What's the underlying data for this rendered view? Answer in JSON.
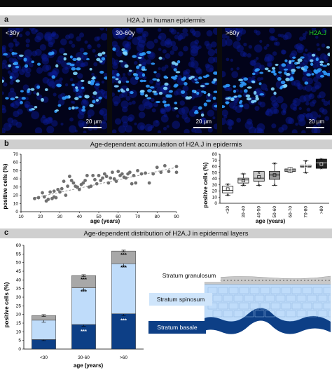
{
  "panel_a": {
    "letter": "a",
    "title": "H2A.J in human epidermis",
    "images": [
      {
        "label": "<30y",
        "scale": "20 µm"
      },
      {
        "label": "30-60y",
        "scale": "20 µm"
      },
      {
        "label": ">60y",
        "scale": "20 µm",
        "marker": "H2A.J"
      }
    ],
    "colors": {
      "nuclei": "#2f9bff",
      "background": "#02031a",
      "marker": "#22d422"
    }
  },
  "panel_b": {
    "letter": "b",
    "title": "Age-dependent accumulation of H2A.J in epidermis",
    "scatter": {
      "xlabel": "age (years)",
      "ylabel": "positive cells (%)",
      "xticks": [
        "10",
        "20",
        "30",
        "40",
        "50",
        "60",
        "70",
        "80",
        "90"
      ],
      "yticks": [
        "0",
        "10",
        "20",
        "30",
        "40",
        "50",
        "60",
        "70"
      ]
    },
    "boxplot": {
      "xlabel": "age (years)",
      "ylabel": "positive cells (%)",
      "yticks": [
        "0",
        "10",
        "20",
        "30",
        "40",
        "50",
        "60",
        "70",
        "80"
      ]
    }
  },
  "panel_c": {
    "letter": "c",
    "title": "Age-dependent distribution of H2A.J in epidermal layers",
    "xlabel": "age (years)",
    "ylabel": "positive cells (%)",
    "yticks": [
      "0",
      "5",
      "10",
      "15",
      "20",
      "25",
      "30",
      "35",
      "40",
      "45",
      "50",
      "55",
      "60"
    ],
    "layers": {
      "granulosum": "Stratum granulosum",
      "spinosum": "Stratum spinosum",
      "basale": "Stratum basale"
    },
    "significance": "***",
    "colors": {
      "basale": "#0d3f86",
      "spinosum": "#bfdcfa",
      "granulosum": "#a8a8a8"
    }
  },
  "chart_data": [
    {
      "type": "scatter",
      "xlabel": "age (years)",
      "ylabel": "positive cells (%)",
      "xlim": [
        10,
        90
      ],
      "ylim": [
        0,
        70
      ],
      "x": [
        17,
        19,
        21,
        22,
        23,
        24,
        25,
        26,
        27,
        27,
        28,
        29,
        30,
        31,
        32,
        33,
        34,
        35,
        36,
        37,
        38,
        39,
        40,
        41,
        42,
        43,
        44,
        45,
        46,
        47,
        48,
        49,
        50,
        51,
        52,
        53,
        54,
        55,
        56,
        57,
        58,
        59,
        60,
        61,
        62,
        63,
        64,
        65,
        66,
        67,
        68,
        69,
        70,
        72,
        74,
        76,
        78,
        80,
        82,
        84,
        86,
        90,
        90
      ],
      "y": [
        16,
        17,
        23,
        18,
        13,
        15,
        24,
        16,
        18,
        25,
        17,
        27,
        24,
        28,
        37,
        20,
        31,
        43,
        38,
        35,
        31,
        30,
        27,
        33,
        35,
        38,
        44,
        30,
        31,
        44,
        39,
        34,
        44,
        38,
        41,
        46,
        43,
        35,
        41,
        48,
        40,
        37,
        49,
        44,
        46,
        42,
        41,
        46,
        48,
        34,
        44,
        35,
        50,
        46,
        47,
        35,
        46,
        54,
        48,
        56,
        49,
        48,
        55
      ],
      "trendline": true
    },
    {
      "type": "box",
      "xlabel": "age (years)",
      "ylabel": "positive cells (%)",
      "ylim": [
        0,
        80
      ],
      "categories": [
        "<30",
        "30-40",
        "40-50",
        "50-60",
        "60-70",
        "70-80",
        ">80"
      ],
      "boxes": [
        {
          "q1": 17,
          "q3": 28,
          "median": 21,
          "mean": 23,
          "whisker_low": 13,
          "whisker_high": 31,
          "outliers": [
            13,
            31
          ]
        },
        {
          "q1": 33,
          "q3": 41,
          "median": 38,
          "mean": 37,
          "whisker_low": 29,
          "whisker_high": 48,
          "outliers": [
            29,
            48
          ]
        },
        {
          "q1": 36,
          "q3": 52,
          "median": 41,
          "mean": 43,
          "whisker_low": 29,
          "whisker_high": 52,
          "outliers": [
            29,
            50
          ]
        },
        {
          "q1": 39,
          "q3": 52,
          "median": 46,
          "mean": 46,
          "whisker_low": 29,
          "whisker_high": 65,
          "outliers": [
            30,
            65
          ]
        },
        {
          "q1": 52,
          "q3": 56,
          "median": 54,
          "mean": 54,
          "whisker_low": 50,
          "whisker_high": 58,
          "outliers": []
        },
        {
          "q1": 59,
          "q3": 62,
          "median": 61,
          "mean": 61,
          "whisker_low": 50,
          "whisker_high": 69,
          "outliers": [
            50,
            69
          ]
        },
        {
          "q1": 57,
          "q3": 72,
          "median": 66,
          "mean": 64,
          "whisker_low": 57,
          "whisker_high": 72,
          "outliers": [
            57,
            72
          ]
        }
      ]
    },
    {
      "type": "bar",
      "stacked": true,
      "xlabel": "age (years)",
      "ylabel": "positive cells (%)",
      "ylim": [
        0,
        60
      ],
      "categories": [
        "<30",
        "30-60",
        ">60"
      ],
      "series": [
        {
          "name": "Stratum basale",
          "values": [
            5.5,
            14.2,
            20.4
          ],
          "errors": [
            0.6,
            1.0,
            1.0
          ]
        },
        {
          "name": "Stratum spinosum",
          "values": [
            11.2,
            21.2,
            29.0
          ],
          "errors": [
            1.2,
            1.2,
            1.2
          ]
        },
        {
          "name": "Stratum granulosum",
          "values": [
            2.7,
            7.1,
            7.3
          ],
          "errors": [
            0.5,
            0.5,
            0.5
          ]
        }
      ],
      "annotations": [
        "***",
        "***",
        "***",
        "***",
        "***"
      ]
    }
  ]
}
